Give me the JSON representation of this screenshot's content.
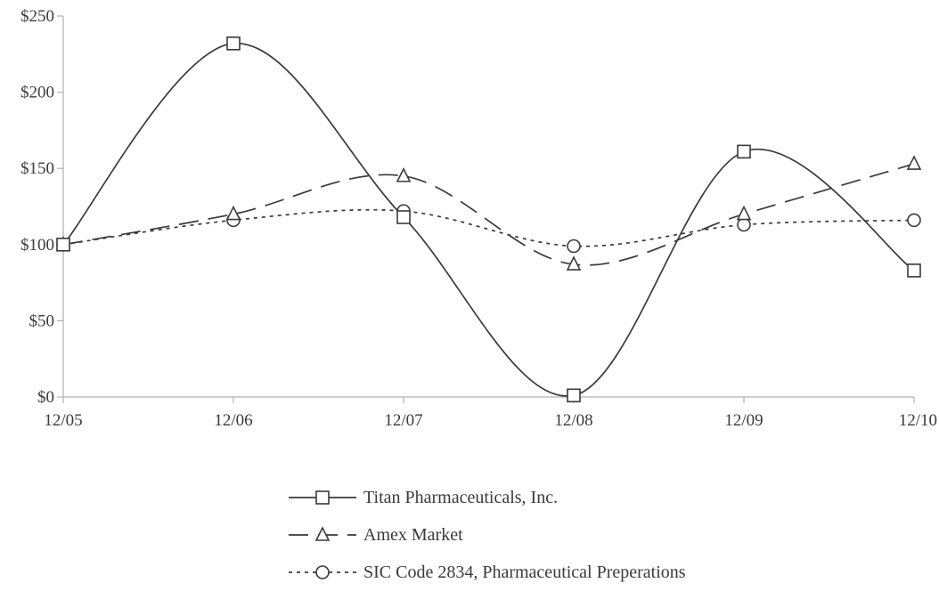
{
  "chart_data": {
    "type": "line",
    "x": [
      "12/05",
      "12/06",
      "12/07",
      "12/08",
      "12/09",
      "12/10"
    ],
    "ylim": [
      0,
      250
    ],
    "yticks": [
      "$0",
      "$50",
      "$100",
      "$150",
      "$200",
      "$250"
    ],
    "ytick_values": [
      0,
      50,
      100,
      150,
      200,
      250
    ],
    "grid": false,
    "legend_position": "bottom",
    "series": [
      {
        "name": "Titan Pharmaceuticals, Inc.",
        "marker": "square",
        "dash": "solid",
        "values": [
          100,
          232,
          118,
          1,
          161,
          83
        ]
      },
      {
        "name": "Amex Market",
        "marker": "triangle",
        "dash": "dashed",
        "values": [
          100,
          120,
          145,
          87,
          120,
          153
        ]
      },
      {
        "name": "SIC Code 2834, Pharmaceutical Preperations",
        "marker": "circle",
        "dash": "dotted",
        "values": [
          100,
          116,
          122,
          99,
          113,
          116
        ]
      }
    ],
    "colors": {
      "line": "#3a3a3a",
      "axis": "#b0b0b0"
    }
  }
}
